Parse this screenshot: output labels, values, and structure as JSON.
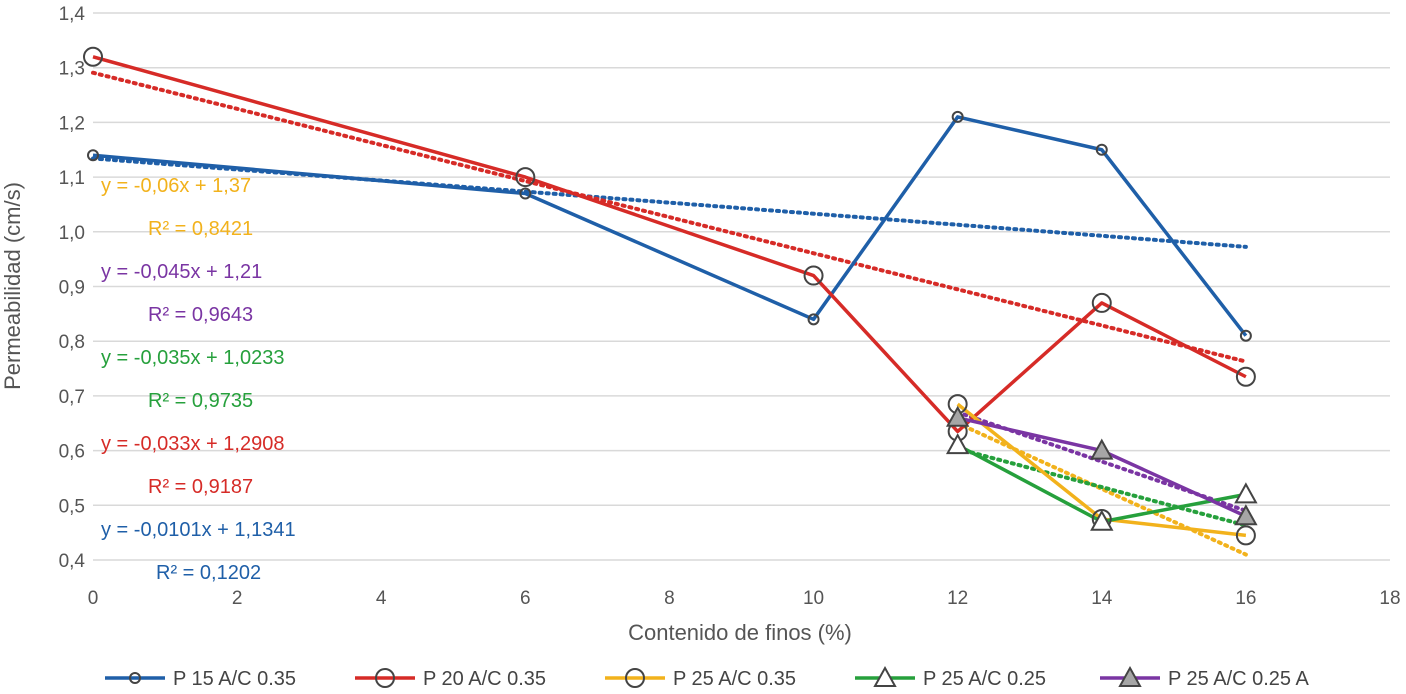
{
  "chart_data": {
    "type": "line",
    "xlabel": "Contenido de finos (%)",
    "ylabel": "Permeabilidad (cm/s)",
    "xlim": [
      0,
      18
    ],
    "ylim": [
      0.4,
      1.4
    ],
    "x_ticks": [
      "0",
      "2",
      "4",
      "6",
      "8",
      "10",
      "12",
      "14",
      "16",
      "18"
    ],
    "y_ticks": [
      "0,4",
      "0,5",
      "0,6",
      "0,7",
      "0,8",
      "0,9",
      "1,0",
      "1,1",
      "1,2",
      "1,3",
      "1,4"
    ],
    "grid": "horizontal",
    "legend_position": "bottom",
    "series": [
      {
        "name": "P 15 A/C 0.35",
        "color": "#1f5fa8",
        "marker": "circle-small",
        "x": [
          0,
          6,
          10,
          12,
          14,
          16
        ],
        "y": [
          1.14,
          1.07,
          0.84,
          1.21,
          1.15,
          0.81
        ],
        "trend": {
          "slope": -0.0101,
          "intercept": 1.1341,
          "x_range": [
            0,
            16
          ]
        }
      },
      {
        "name": "P 20 A/C 0.35",
        "color": "#d62b27",
        "marker": "circle",
        "x": [
          0,
          6,
          10,
          12,
          14,
          16
        ],
        "y": [
          1.32,
          1.1,
          0.92,
          0.635,
          0.87,
          0.735
        ],
        "trend": {
          "slope": -0.033,
          "intercept": 1.2908,
          "x_range": [
            0,
            16
          ]
        }
      },
      {
        "name": "P 25 A/C 0.35",
        "color": "#f2b21c",
        "marker": "circle",
        "x": [
          12,
          14,
          16
        ],
        "y": [
          0.685,
          0.475,
          0.445
        ],
        "trend": {
          "slope": -0.06,
          "intercept": 1.37,
          "x_range": [
            12,
            16
          ]
        }
      },
      {
        "name": "P 25 A/C 0.25",
        "color": "#26a03c",
        "marker": "triangle",
        "x": [
          12,
          14,
          16
        ],
        "y": [
          0.61,
          0.47,
          0.52
        ],
        "trend": {
          "slope": -0.035,
          "intercept": 1.0233,
          "x_range": [
            12,
            16
          ]
        }
      },
      {
        "name": "P 25 A/C 0.25 A",
        "color": "#7a35a3",
        "marker": "triangle-filled",
        "x": [
          12,
          14,
          16
        ],
        "y": [
          0.66,
          0.6,
          0.48
        ],
        "trend": {
          "slope": -0.045,
          "intercept": 1.21,
          "x_range": [
            12,
            16
          ]
        }
      }
    ],
    "annotations": [
      {
        "eq": "y = -0,06x + 1,37",
        "r2": "R² = 0,8421",
        "color": "#f2b21c"
      },
      {
        "eq": "y = -0,045x + 1,21",
        "r2": "R² = 0,9643",
        "color": "#7a35a3"
      },
      {
        "eq": "y = -0,035x + 1,0233",
        "r2": "R² = 0,9735",
        "color": "#26a03c"
      },
      {
        "eq": "y = -0,033x + 1,2908",
        "r2": "R² = 0,9187",
        "color": "#d62b27"
      },
      {
        "eq": "y = -0,0101x + 1,1341",
        "r2": "R² = 0,1202",
        "color": "#1f5fa8"
      }
    ]
  }
}
